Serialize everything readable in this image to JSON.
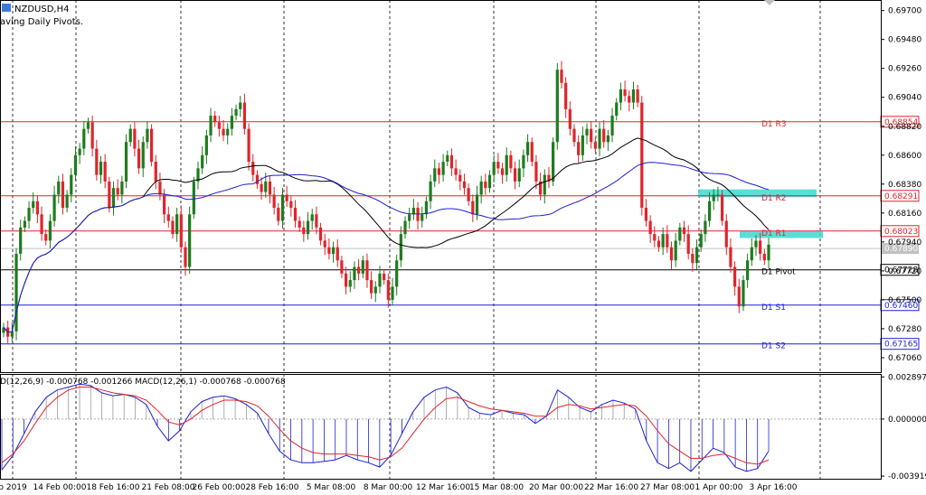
{
  "chart_data": [
    {
      "type": "candlestick",
      "title": "NZDUSD,H4",
      "subtitle": "aving Daily Pivots.",
      "ylim": [
        0.6695,
        0.6978
      ],
      "y_ticks": [
        "0.69700",
        "0.69480",
        "0.69260",
        "0.69040",
        "0.68820",
        "0.68600",
        "0.68380",
        "0.68160",
        "0.67940",
        "0.67720",
        "0.67500",
        "0.67280",
        "0.67060"
      ],
      "x_ticks": [
        "b 2019",
        "14 Feb 00:00",
        "18 Feb 16:00",
        "21 Feb 08:00",
        "26 Feb 00:00",
        "28 Feb 16:00",
        "5 Mar 08:00",
        "8 Mar 00:00",
        "12 Mar 16:00",
        "15 Mar 08:00",
        "20 Mar 00:00",
        "22 Mar 16:00",
        "27 Mar 08:00",
        "1 Apr 00:00",
        "3 Apr 16:00"
      ],
      "pivots": [
        {
          "name": "D1 R3",
          "value": 0.68854,
          "label": "0.68854",
          "color": "#e0242b"
        },
        {
          "name": "D1 R2",
          "value": 0.68291,
          "label": "0.68291",
          "color": "#e0242b"
        },
        {
          "name": "D1 R1",
          "value": 0.68023,
          "label": "0.68023",
          "color": "#e0242b"
        },
        {
          "name": "D1 Pivot",
          "value": 0.67728,
          "label": "0.67728",
          "color": "#000000"
        },
        {
          "name": "D1 S1",
          "value": 0.6746,
          "label": "0.67460",
          "color": "#1e1ee0"
        },
        {
          "name": "D1 S2",
          "value": 0.67165,
          "label": "0.67165",
          "color": "#1e1ee0"
        }
      ],
      "current_price": {
        "value": 0.6789,
        "label": "0.67890"
      },
      "zones": [
        {
          "from": 0.6828,
          "to": 0.6834,
          "color": "#40d8d0"
        },
        {
          "from": 0.6797,
          "to": 0.6802,
          "color": "#40d8d0"
        }
      ],
      "colors": {
        "bull": "#1e7b1e",
        "bear": "#e0242b",
        "ma_black": "#000000",
        "ma_blue": "#2020d0",
        "grid": "#000000"
      },
      "series_close": [
        0.6729,
        0.6722,
        0.6726,
        0.6785,
        0.6805,
        0.681,
        0.682,
        0.6825,
        0.6815,
        0.68,
        0.6795,
        0.681,
        0.683,
        0.684,
        0.682,
        0.683,
        0.6845,
        0.686,
        0.6865,
        0.688,
        0.6885,
        0.6865,
        0.6845,
        0.6855,
        0.684,
        0.682,
        0.6835,
        0.683,
        0.684,
        0.687,
        0.688,
        0.6865,
        0.685,
        0.687,
        0.688,
        0.6855,
        0.684,
        0.683,
        0.6815,
        0.681,
        0.68,
        0.6815,
        0.679,
        0.6775,
        0.6815,
        0.684,
        0.685,
        0.686,
        0.6875,
        0.689,
        0.6885,
        0.688,
        0.6875,
        0.688,
        0.689,
        0.6895,
        0.69,
        0.688,
        0.6855,
        0.6845,
        0.6838,
        0.6832,
        0.684,
        0.683,
        0.682,
        0.681,
        0.683,
        0.6825,
        0.682,
        0.681,
        0.6805,
        0.68,
        0.681,
        0.6815,
        0.6805,
        0.6795,
        0.679,
        0.6785,
        0.679,
        0.678,
        0.677,
        0.676,
        0.6765,
        0.6775,
        0.677,
        0.678,
        0.6765,
        0.6755,
        0.676,
        0.677,
        0.6765,
        0.675,
        0.676,
        0.678,
        0.68,
        0.681,
        0.6815,
        0.682,
        0.681,
        0.6815,
        0.6825,
        0.684,
        0.685,
        0.6845,
        0.6855,
        0.686,
        0.685,
        0.6845,
        0.684,
        0.6835,
        0.6825,
        0.6815,
        0.683,
        0.684,
        0.6835,
        0.6845,
        0.6855,
        0.685,
        0.6845,
        0.686,
        0.685,
        0.684,
        0.685,
        0.686,
        0.687,
        0.6855,
        0.684,
        0.683,
        0.6845,
        0.684,
        0.687,
        0.6925,
        0.6915,
        0.6895,
        0.688,
        0.687,
        0.686,
        0.6875,
        0.688,
        0.687,
        0.6865,
        0.688,
        0.687,
        0.6875,
        0.689,
        0.69,
        0.691,
        0.6905,
        0.69,
        0.691,
        0.69,
        0.682,
        0.681,
        0.68,
        0.6795,
        0.679,
        0.68,
        0.679,
        0.678,
        0.6795,
        0.6805,
        0.68,
        0.6785,
        0.6778,
        0.679,
        0.68,
        0.681,
        0.6825,
        0.683,
        0.683,
        0.681,
        0.679,
        0.6775,
        0.676,
        0.6745,
        0.6765,
        0.678,
        0.679,
        0.6795,
        0.6785,
        0.678,
        0.6792
      ]
    },
    {
      "type": "line",
      "title": "D(12,26,9) -0.000768 -0.001266 MACD(12,26,1) -0.000768 -0.000768",
      "ylim": [
        -0.0041,
        0.0031
      ],
      "y_ticks": [
        "0.002897",
        "0.000000",
        "-0.003919"
      ],
      "series": [
        {
          "color": "#2020d0",
          "values": [
            -0.0035,
            -0.0025,
            -0.001,
            0.0005,
            0.0015,
            0.002,
            0.0022,
            0.0024,
            0.0023,
            0.0018,
            0.0016,
            0.0017,
            0.0015,
            0.001,
            -0.0005,
            -0.0015,
            -0.0008,
            0.0005,
            0.0012,
            0.0015,
            0.0016,
            0.0014,
            0.001,
            0.0004,
            -0.001,
            -0.0022,
            -0.0028,
            -0.003,
            -0.003,
            -0.0029,
            -0.0028,
            -0.0025,
            -0.0028,
            -0.003,
            -0.0033,
            -0.0025,
            -0.001,
            0.0005,
            0.0015,
            0.002,
            0.0022,
            0.0018,
            0.0008,
            0.0004,
            0.0003,
            0.0006,
            0.0004,
            0.0003,
            -0.0003,
            0.0002,
            0.002,
            0.0015,
            0.0008,
            0.0005,
            0.001,
            0.0013,
            0.0011,
            0.0007,
            -0.0015,
            -0.003,
            -0.0034,
            -0.003,
            -0.0036,
            -0.0028,
            -0.002,
            -0.0023,
            -0.0033,
            -0.0036,
            -0.0034,
            -0.0022
          ]
        },
        {
          "color": "#e0242b",
          "values": [
            -0.003,
            -0.0024,
            -0.0015,
            -0.0003,
            0.0008,
            0.0015,
            0.002,
            0.0022,
            0.0022,
            0.002,
            0.0018,
            0.0017,
            0.0016,
            0.0013,
            0.0006,
            -0.0002,
            -0.0004,
            0.0,
            0.0006,
            0.001,
            0.0013,
            0.0013,
            0.0012,
            0.0009,
            0.0002,
            -0.0007,
            -0.0015,
            -0.002,
            -0.0023,
            -0.0024,
            -0.0024,
            -0.0024,
            -0.0025,
            -0.0026,
            -0.0028,
            -0.0026,
            -0.002,
            -0.001,
            0.0,
            0.0008,
            0.0014,
            0.0015,
            0.0012,
            0.0009,
            0.0007,
            0.0006,
            0.0005,
            0.0004,
            0.0002,
            0.0002,
            0.0008,
            0.001,
            0.0009,
            0.0007,
            0.0008,
            0.0009,
            0.001,
            0.0009,
            0.0002,
            -0.0008,
            -0.0017,
            -0.0022,
            -0.0027,
            -0.0027,
            -0.0025,
            -0.0024,
            -0.0027,
            -0.003,
            -0.0031,
            -0.0028
          ]
        }
      ]
    }
  ]
}
